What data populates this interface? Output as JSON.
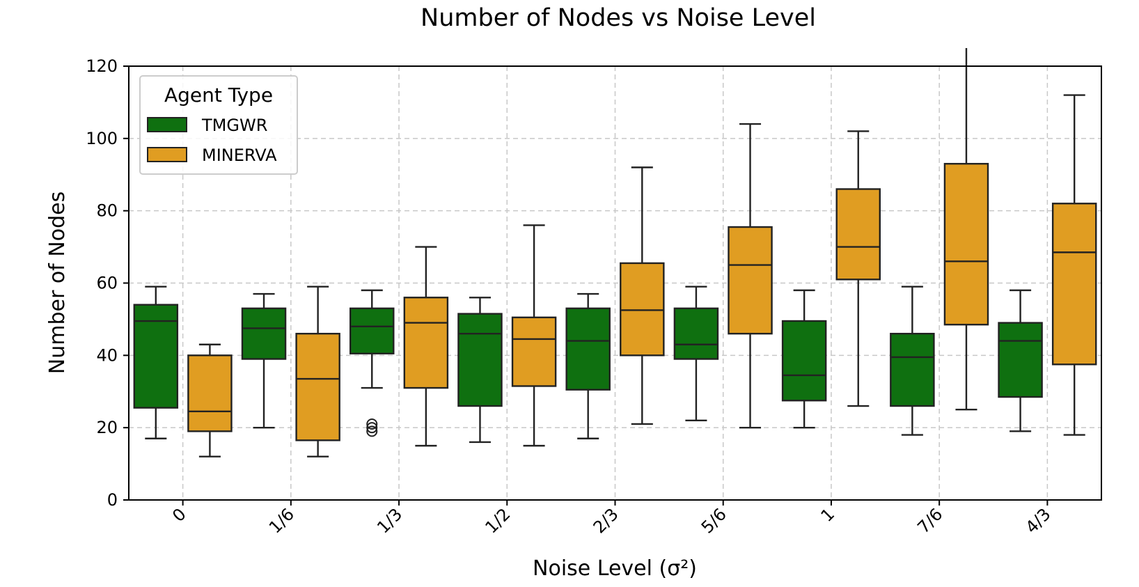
{
  "chart_data": {
    "type": "box",
    "title": "Number of Nodes vs Noise Level",
    "xlabel": "Noise Level (σ²)",
    "ylabel": "Number of Nodes",
    "categories": [
      "0",
      "1/6",
      "1/3",
      "1/2",
      "2/3",
      "5/6",
      "1",
      "7/6",
      "4/3"
    ],
    "ylim": [
      0,
      120
    ],
    "yticks": [
      0,
      20,
      40,
      60,
      80,
      100,
      120
    ],
    "grid": true,
    "legend": {
      "title": "Agent Type",
      "position": "top-left"
    },
    "series": [
      {
        "name": "TMGWR",
        "color": "#0f7010",
        "boxes": [
          {
            "whislo": 17,
            "q1": 25.5,
            "med": 49.5,
            "q3": 54,
            "whishi": 59,
            "fliers": []
          },
          {
            "whislo": 20,
            "q1": 39,
            "med": 47.5,
            "q3": 53,
            "whishi": 57,
            "fliers": []
          },
          {
            "whislo": 31,
            "q1": 40.5,
            "med": 48,
            "q3": 53,
            "whishi": 58,
            "fliers": [
              19,
              20,
              21
            ]
          },
          {
            "whislo": 16,
            "q1": 26,
            "med": 46,
            "q3": 51.5,
            "whishi": 56,
            "fliers": []
          },
          {
            "whislo": 17,
            "q1": 30.5,
            "med": 44,
            "q3": 53,
            "whishi": 57,
            "fliers": []
          },
          {
            "whislo": 22,
            "q1": 39,
            "med": 43,
            "q3": 53,
            "whishi": 59,
            "fliers": []
          },
          {
            "whislo": 20,
            "q1": 27.5,
            "med": 34.5,
            "q3": 49.5,
            "whishi": 58,
            "fliers": []
          },
          {
            "whislo": 18,
            "q1": 26,
            "med": 39.5,
            "q3": 46,
            "whishi": 59,
            "fliers": []
          },
          {
            "whislo": 19,
            "q1": 28.5,
            "med": 44,
            "q3": 49,
            "whishi": 58,
            "fliers": []
          }
        ]
      },
      {
        "name": "MINERVA",
        "color": "#e09d22",
        "boxes": [
          {
            "whislo": 12,
            "q1": 19,
            "med": 24.5,
            "q3": 40,
            "whishi": 43,
            "fliers": []
          },
          {
            "whislo": 12,
            "q1": 16.5,
            "med": 33.5,
            "q3": 46,
            "whishi": 59,
            "fliers": []
          },
          {
            "whislo": 15,
            "q1": 31,
            "med": 49,
            "q3": 56,
            "whishi": 70,
            "fliers": []
          },
          {
            "whislo": 15,
            "q1": 31.5,
            "med": 44.5,
            "q3": 50.5,
            "whishi": 76,
            "fliers": []
          },
          {
            "whislo": 21,
            "q1": 40,
            "med": 52.5,
            "q3": 65.5,
            "whishi": 92,
            "fliers": []
          },
          {
            "whislo": 20,
            "q1": 46,
            "med": 65,
            "q3": 75.5,
            "whishi": 104,
            "fliers": []
          },
          {
            "whislo": 26,
            "q1": 61,
            "med": 70,
            "q3": 86,
            "whishi": 102,
            "fliers": []
          },
          {
            "whislo": 25,
            "q1": 48.5,
            "med": 66,
            "q3": 93,
            "whishi": 125,
            "fliers": []
          },
          {
            "whislo": 18,
            "q1": 37.5,
            "med": 68.5,
            "q3": 82,
            "whishi": 112,
            "fliers": []
          }
        ]
      }
    ]
  }
}
